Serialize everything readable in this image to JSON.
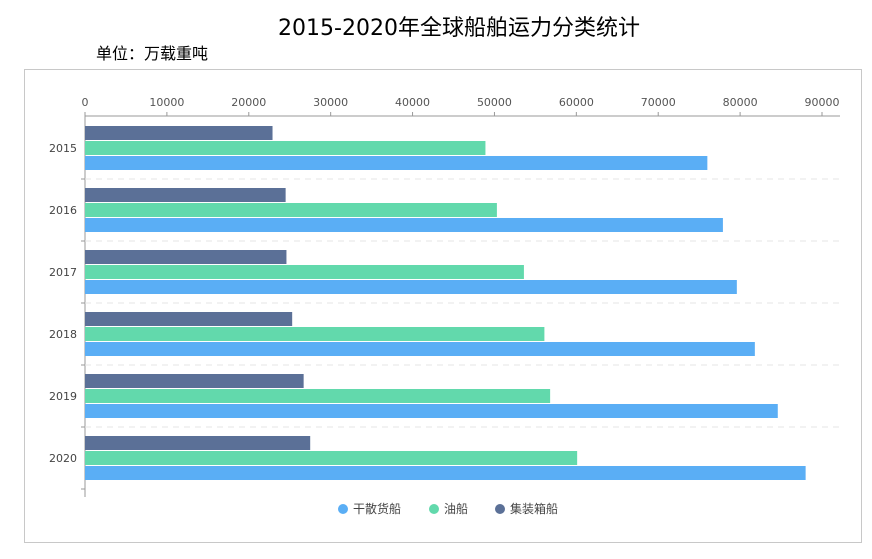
{
  "title": "2015-2020年全球船舶运力分类统计",
  "unit_label": "单位：万载重吨",
  "chart_data": {
    "type": "bar",
    "orientation": "horizontal",
    "categories": [
      "2015",
      "2016",
      "2017",
      "2018",
      "2019",
      "2020"
    ],
    "series": [
      {
        "name": "干散货船",
        "color": "#5aaef5",
        "values": [
          76000,
          77900,
          79600,
          81800,
          84600,
          88000
        ]
      },
      {
        "name": "油船",
        "color": "#62d9ac",
        "values": [
          48900,
          50300,
          53600,
          56100,
          56800,
          60100
        ]
      },
      {
        "name": "集装箱船",
        "color": "#5b7097",
        "values": [
          22900,
          24500,
          24600,
          25300,
          26700,
          27500
        ]
      }
    ],
    "xaxis": {
      "position": "top",
      "range": [
        0,
        90000
      ],
      "ticks": [
        "0",
        "10000",
        "20000",
        "30000",
        "40000",
        "50000",
        "60000",
        "70000",
        "80000",
        "90000"
      ]
    },
    "title": "2015-2020年全球船舶运力分类统计",
    "xlabel": "",
    "ylabel": "",
    "grid": "dashed horizontal separators",
    "legend_position": "bottom-center"
  }
}
